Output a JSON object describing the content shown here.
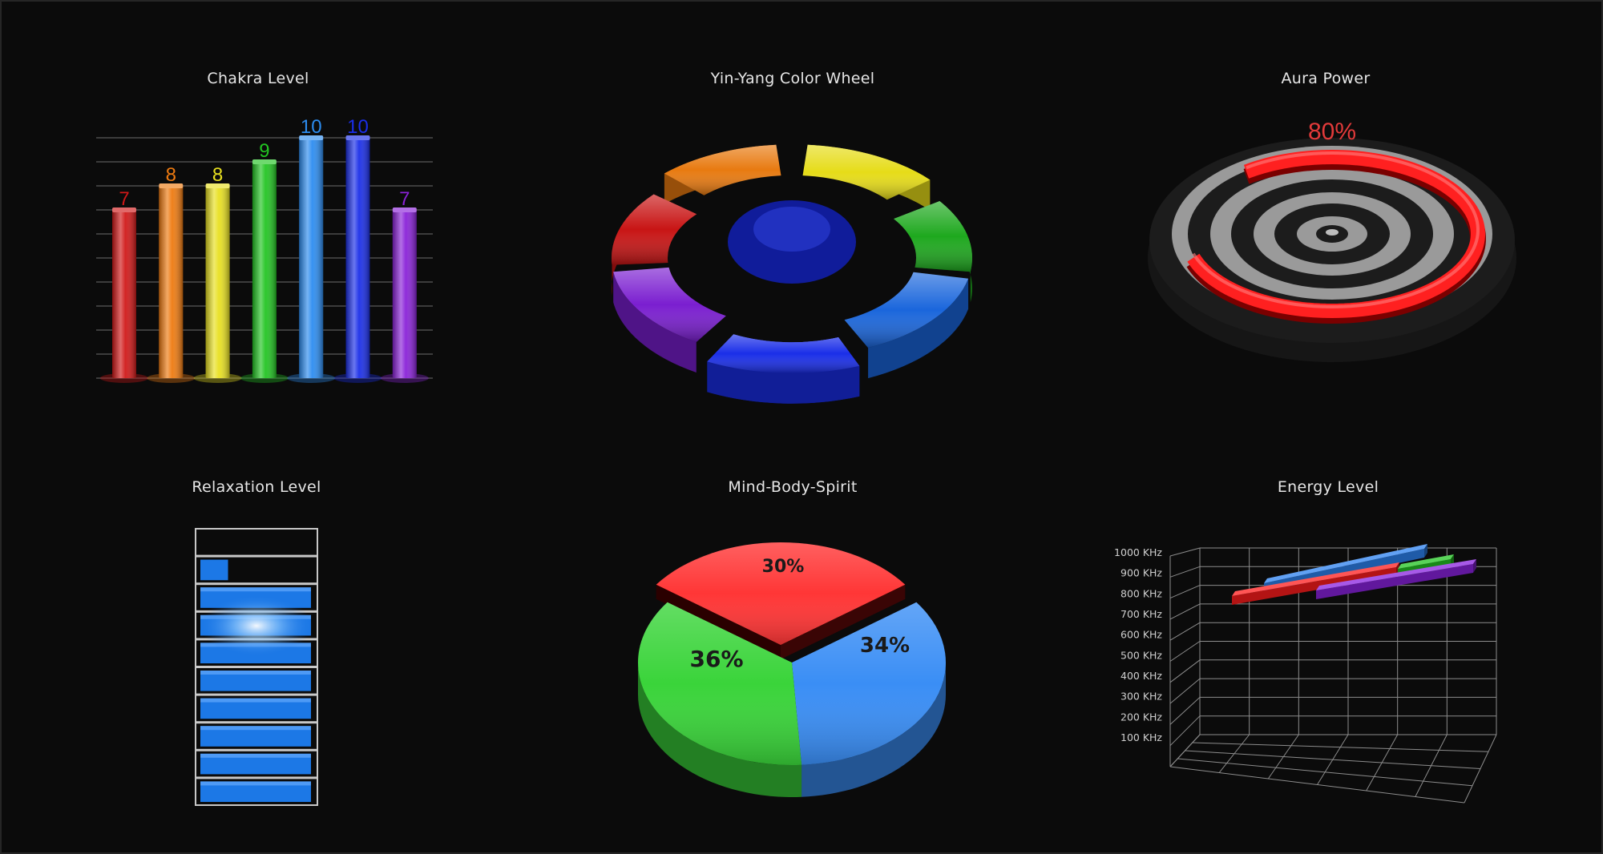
{
  "titles": {
    "chakra": "Chakra Level",
    "wheel": "Yin-Yang Color Wheel",
    "aura": "Aura Power",
    "relax": "Relaxation Level",
    "mbs": "Mind-Body-Spirit",
    "energy": "Energy Level"
  },
  "chart_data": [
    {
      "type": "bar",
      "title": "Chakra Level",
      "values": [
        7,
        8,
        8,
        9,
        10,
        10,
        7
      ],
      "colors": [
        "#d01818",
        "#ee7a10",
        "#e8e020",
        "#22c422",
        "#2c8cf0",
        "#1a2ee8",
        "#8a22d8"
      ],
      "ylim": [
        0,
        10
      ]
    },
    {
      "type": "pie",
      "title": "Yin-Yang Color Wheel",
      "segments": [
        "orange",
        "yellow",
        "green",
        "blue",
        "blue",
        "violet",
        "red"
      ],
      "colors": [
        "#e87a10",
        "#e6dc18",
        "#1ea81e",
        "#1a66dc",
        "#1a2ee8",
        "#7a1ed0",
        "#c81414"
      ]
    },
    {
      "type": "gauge",
      "title": "Aura Power",
      "value": 80,
      "value_label": "80%",
      "color": "#ff2020"
    },
    {
      "type": "bar",
      "title": "Relaxation Level",
      "segments_total": 10,
      "segments_filled": 8,
      "partial_segment_fraction": 0.25,
      "color": "#1c78e6"
    },
    {
      "type": "pie",
      "title": "Mind-Body-Spirit",
      "slices": [
        {
          "value": 30,
          "label": "30%",
          "color": "#ff3636"
        },
        {
          "value": 34,
          "label": "34%",
          "color": "#3a8ef5"
        },
        {
          "value": 36,
          "label": "36%",
          "color": "#3ad43a"
        }
      ]
    },
    {
      "type": "bar",
      "title": "Energy Level",
      "y_ticks": [
        "100 KHz",
        "200 KHz",
        "300 KHz",
        "400 KHz",
        "500 KHz",
        "600 KHz",
        "700 KHz",
        "800 KHz",
        "900 KHz",
        "1000 KHz"
      ],
      "ylim": [
        0,
        1000
      ],
      "series": [
        {
          "value": 900,
          "color": "#2c82f0"
        },
        {
          "value": 850,
          "color": "#ff1c1c"
        },
        {
          "value": 880,
          "color": "#22c422"
        },
        {
          "value": 860,
          "color": "#8a22e0"
        }
      ]
    }
  ]
}
